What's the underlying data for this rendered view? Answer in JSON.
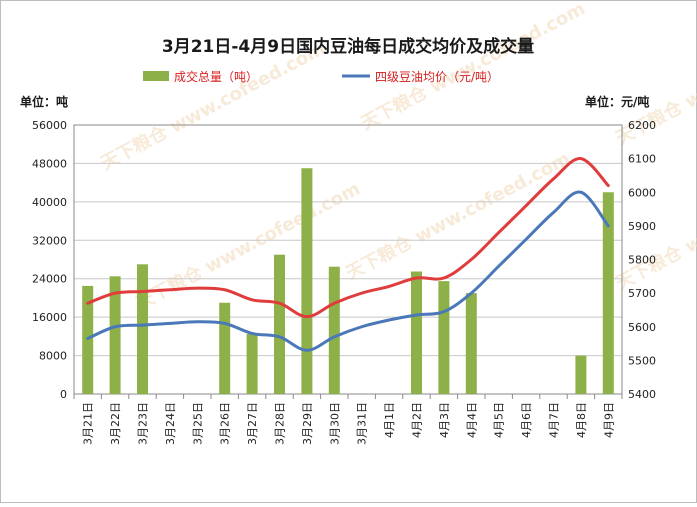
{
  "chart_data": {
    "type": "bar",
    "title": "3月21日-4月9日国内豆油每日成交均价及成交量",
    "left_axis_unit": "单位：吨",
    "right_axis_unit": "单位：元/吨",
    "watermark": "天下粮仓 www.cofeed.com",
    "categories": [
      "3月21日",
      "3月22日",
      "3月23日",
      "3月24日",
      "3月25日",
      "3月26日",
      "3月27日",
      "3月28日",
      "3月29日",
      "3月30日",
      "3月31日",
      "4月1日",
      "4月2日",
      "4月3日",
      "4月4日",
      "4月5日",
      "4月6日",
      "4月7日",
      "4月8日",
      "4月9日"
    ],
    "left_ylim": [
      0,
      56000
    ],
    "left_ticks": [
      0,
      8000,
      16000,
      24000,
      32000,
      40000,
      48000,
      56000
    ],
    "right_ylim": [
      5400,
      6200
    ],
    "right_ticks": [
      5400,
      5500,
      5600,
      5700,
      5800,
      5900,
      6000,
      6100,
      6200
    ],
    "grid": "horizontal",
    "legend_position": "top",
    "series": [
      {
        "name": "成交总量（吨）",
        "type": "bar",
        "axis": "left",
        "color": "#8db148",
        "values": [
          22500,
          24500,
          27000,
          0,
          0,
          19000,
          12500,
          29000,
          47000,
          26500,
          0,
          0,
          25500,
          23500,
          21000,
          0,
          0,
          0,
          8000,
          42000
        ]
      },
      {
        "name": "四级豆油均价（元/吨）",
        "type": "line",
        "axis": "right",
        "color": "#e03c3c",
        "values": [
          5670,
          5700,
          5705,
          5710,
          5715,
          5710,
          5680,
          5670,
          5630,
          5670,
          5700,
          5720,
          5745,
          5745,
          5800,
          5880,
          5960,
          6040,
          6100,
          6020
        ]
      },
      {
        "name": "",
        "type": "line",
        "axis": "right",
        "color": "#4a78b8",
        "values": [
          5565,
          5600,
          5605,
          5610,
          5615,
          5610,
          5580,
          5570,
          5530,
          5570,
          5600,
          5620,
          5635,
          5645,
          5700,
          5780,
          5860,
          5940,
          6000,
          5900
        ]
      }
    ]
  }
}
